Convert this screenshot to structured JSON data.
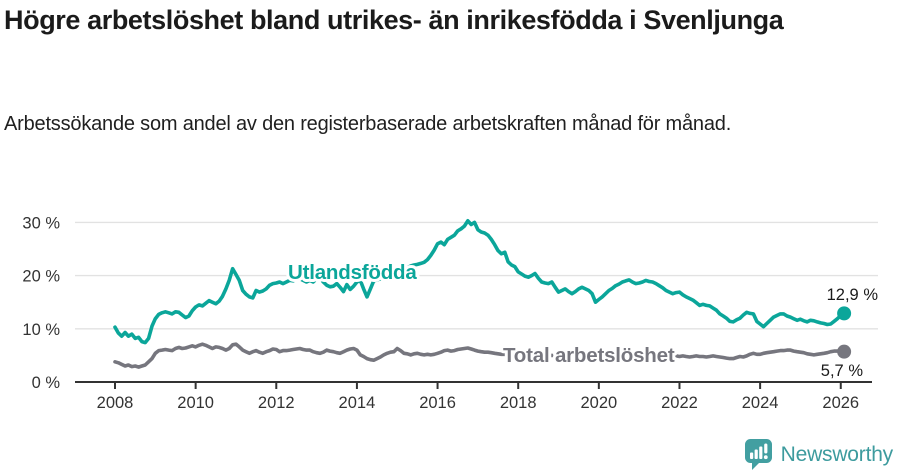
{
  "header": {
    "title": "Högre arbetslöshet bland utrikes- än inrikesfödda i Svenljunga",
    "subtitle": "Arbetssökande som andel av den registerbaserade arbetskraften månad för månad."
  },
  "footer": {
    "brand": "Newsworthy"
  },
  "colors": {
    "foreign_line": "#0ba69a",
    "total_line": "#76767e",
    "gridline": "#e2e2e2",
    "axis": "#333333",
    "tick_label": "#333333",
    "end_label": "#1a1a1a",
    "brand_teal": "#3d9b9e"
  },
  "chart_data": {
    "type": "line",
    "title": "Högre arbetslöshet bland utrikes- än inrikesfödda i Svenljunga",
    "subtitle": "Arbetssökande som andel av den registerbaserade arbetskraften månad för månad.",
    "frequency": "monthly",
    "x_start": "2008-01",
    "x_end": "2026-02",
    "ylim": [
      0,
      32
    ],
    "grid": "horizontal",
    "legend_position": "inline-labels",
    "y_ticks": [
      {
        "value": 0,
        "label": "0 %"
      },
      {
        "value": 10,
        "label": "10 %"
      },
      {
        "value": 20,
        "label": "20 %"
      },
      {
        "value": 30,
        "label": "30 %"
      }
    ],
    "x_ticks": [
      {
        "year": 2008,
        "label": "2008"
      },
      {
        "year": 2010,
        "label": "2010"
      },
      {
        "year": 2012,
        "label": "2012"
      },
      {
        "year": 2014,
        "label": "2014"
      },
      {
        "year": 2016,
        "label": "2016"
      },
      {
        "year": 2018,
        "label": "2018"
      },
      {
        "year": 2020,
        "label": "2020"
      },
      {
        "year": 2022,
        "label": "2022"
      },
      {
        "year": 2024,
        "label": "2024"
      },
      {
        "year": 2026,
        "label": "2026"
      }
    ],
    "series": [
      {
        "name": "Utlandsfödda",
        "color": "#0ba69a",
        "end_label": "12,9 %",
        "end_value": 12.9,
        "values": [
          10.3,
          9.2,
          8.6,
          9.3,
          8.6,
          9.0,
          8.2,
          8.4,
          7.6,
          7.4,
          8.2,
          10.5,
          11.9,
          12.7,
          13.0,
          13.2,
          13.0,
          12.8,
          13.2,
          13.1,
          12.6,
          12.1,
          12.4,
          13.4,
          14.1,
          14.5,
          14.3,
          14.8,
          15.3,
          15.0,
          14.7,
          15.2,
          16.1,
          17.5,
          19.1,
          21.3,
          20.2,
          19.1,
          17.2,
          16.5,
          16.0,
          15.8,
          17.2,
          16.9,
          17.1,
          17.5,
          18.2,
          18.5,
          18.6,
          18.8,
          18.5,
          18.8,
          19.1,
          19.0,
          19.3,
          19.4,
          19.1,
          18.8,
          19.1,
          18.8,
          19.4,
          19.6,
          18.8,
          18.2,
          17.9,
          18.0,
          18.5,
          17.8,
          17.0,
          18.3,
          17.4,
          18.0,
          18.8,
          19.1,
          17.5,
          16.0,
          17.5,
          19.0,
          19.2,
          19.4,
          19.6,
          19.8,
          20.0,
          20.3,
          20.6,
          20.9,
          21.2,
          21.5,
          21.8,
          22.0,
          22.1,
          22.3,
          22.5,
          23.0,
          23.8,
          24.8,
          26.0,
          26.3,
          25.8,
          26.8,
          27.2,
          27.6,
          28.4,
          28.8,
          29.3,
          30.3,
          29.6,
          30.0,
          28.6,
          28.2,
          28.0,
          27.6,
          26.8,
          25.8,
          24.7,
          24.1,
          24.4,
          22.6,
          22.0,
          21.7,
          20.7,
          20.3,
          19.9,
          19.7,
          20.0,
          20.4,
          19.5,
          18.8,
          18.6,
          18.5,
          18.8,
          17.8,
          16.9,
          17.2,
          17.5,
          17.0,
          16.6,
          17.0,
          17.5,
          17.8,
          17.5,
          17.2,
          16.6,
          15.0,
          15.5,
          16.0,
          16.6,
          17.2,
          17.6,
          18.1,
          18.4,
          18.8,
          19.0,
          19.2,
          18.8,
          18.5,
          18.6,
          18.8,
          19.1,
          18.9,
          18.8,
          18.5,
          18.1,
          17.7,
          17.2,
          16.9,
          16.6,
          16.8,
          16.9,
          16.4,
          16.0,
          15.7,
          15.4,
          14.9,
          14.4,
          14.6,
          14.4,
          14.3,
          13.9,
          13.5,
          12.8,
          12.4,
          12.0,
          11.4,
          11.3,
          11.7,
          12.0,
          12.6,
          13.1,
          12.9,
          12.8,
          11.4,
          10.9,
          10.4,
          11.0,
          11.6,
          12.2,
          12.5,
          12.8,
          12.8,
          12.4,
          12.2,
          11.9,
          11.6,
          11.8,
          11.5,
          11.3,
          11.6,
          11.5,
          11.3,
          11.1,
          11.0,
          10.8,
          10.9,
          11.4,
          11.9,
          12.5,
          12.9
        ]
      },
      {
        "name": "Total arbetslöshet",
        "color": "#76767e",
        "end_label": "5,7 %",
        "end_value": 5.7,
        "values": [
          3.8,
          3.6,
          3.3,
          3.0,
          3.2,
          2.9,
          3.0,
          2.8,
          3.0,
          3.2,
          3.8,
          4.4,
          5.4,
          5.9,
          6.0,
          6.1,
          6.0,
          5.9,
          6.3,
          6.5,
          6.3,
          6.4,
          6.6,
          6.8,
          6.6,
          6.9,
          7.1,
          6.9,
          6.6,
          6.3,
          6.6,
          6.5,
          6.3,
          6.0,
          6.3,
          7.0,
          7.1,
          6.6,
          6.0,
          5.7,
          5.4,
          5.7,
          5.9,
          5.6,
          5.4,
          5.7,
          5.9,
          6.2,
          6.1,
          5.7,
          5.9,
          5.9,
          6.0,
          6.1,
          6.2,
          6.3,
          6.1,
          6.0,
          6.0,
          5.7,
          5.5,
          5.4,
          5.6,
          6.0,
          5.8,
          5.7,
          5.5,
          5.4,
          5.7,
          6.0,
          6.2,
          6.3,
          6.0,
          5.1,
          4.8,
          4.4,
          4.2,
          4.1,
          4.4,
          4.7,
          5.1,
          5.4,
          5.6,
          5.7,
          6.3,
          5.9,
          5.4,
          5.3,
          5.1,
          5.3,
          5.4,
          5.2,
          5.1,
          5.2,
          5.1,
          5.2,
          5.4,
          5.6,
          5.9,
          6.0,
          5.8,
          5.9,
          6.1,
          6.2,
          6.3,
          6.4,
          6.2,
          6.0,
          5.8,
          5.7,
          5.6,
          5.6,
          5.5,
          5.4,
          5.3,
          5.2,
          5.2,
          5.1,
          5.1,
          5.0,
          5.0,
          5.1,
          5.0,
          4.9,
          5.0,
          5.1,
          5.0,
          4.9,
          4.8,
          4.9,
          5.0,
          4.9,
          4.8,
          4.9,
          5.0,
          4.9,
          4.8,
          4.9,
          5.0,
          5.1,
          5.0,
          4.9,
          4.8,
          4.9,
          5.0,
          5.1,
          5.3,
          5.5,
          5.6,
          5.7,
          5.6,
          5.5,
          5.4,
          5.3,
          5.2,
          5.1,
          5.2,
          5.3,
          5.2,
          5.1,
          5.0,
          4.9,
          4.8,
          4.9,
          4.8,
          4.7,
          4.8,
          4.9,
          4.8,
          4.9,
          4.8,
          4.7,
          4.8,
          4.9,
          4.8,
          4.8,
          4.7,
          4.8,
          4.9,
          4.8,
          4.7,
          4.6,
          4.5,
          4.4,
          4.4,
          4.6,
          4.8,
          4.7,
          4.9,
          5.2,
          5.4,
          5.2,
          5.2,
          5.4,
          5.5,
          5.6,
          5.7,
          5.8,
          5.9,
          5.9,
          6.0,
          6.0,
          5.8,
          5.7,
          5.6,
          5.5,
          5.3,
          5.2,
          5.1,
          5.2,
          5.3,
          5.4,
          5.5,
          5.7,
          5.8,
          5.8,
          5.8,
          5.7
        ]
      }
    ]
  }
}
